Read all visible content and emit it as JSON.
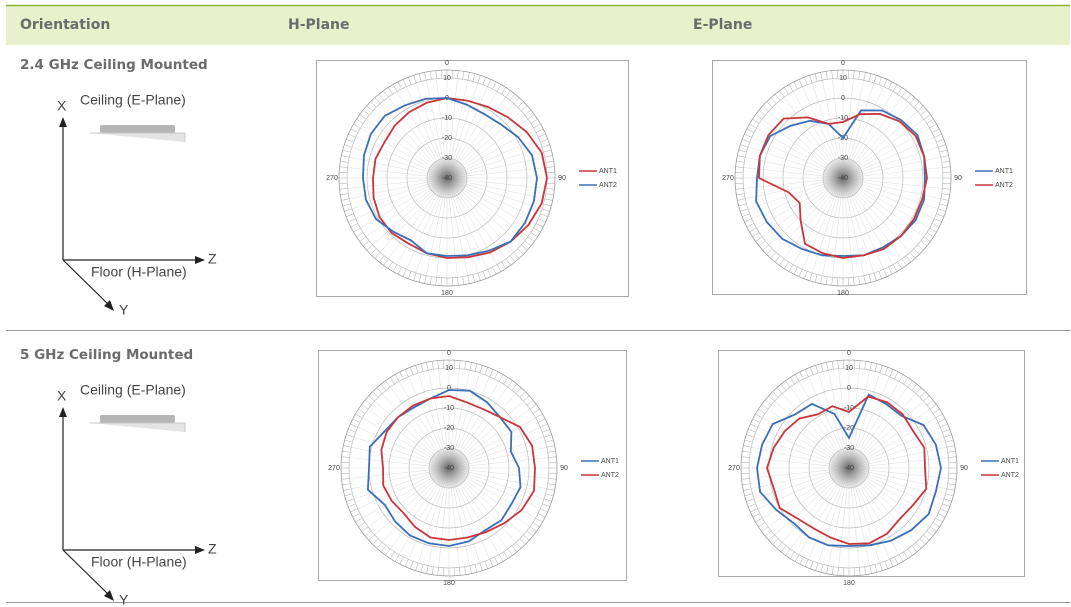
{
  "header": {
    "columns": [
      "Orientation",
      "H-Plane",
      "E-Plane"
    ]
  },
  "rows": [
    {
      "title": "2.4 GHz Ceiling Mounted",
      "diagram": {
        "x": "X",
        "ceiling": "Ceiling  (E-Plane)",
        "floor": "Floor  (H-Plane)",
        "z": "Z",
        "y": "Y"
      },
      "h_plane": {
        "type": "polar",
        "theta": [
          0,
          15,
          30,
          45,
          60,
          75,
          90,
          105,
          120,
          135,
          150,
          165,
          180,
          195,
          210,
          225,
          240,
          255,
          270,
          285,
          300,
          315,
          330,
          345
        ],
        "rlim": [
          -40,
          10
        ],
        "rticks": [
          10,
          0,
          -10,
          -20,
          -30,
          -40
        ],
        "angle_ticks": [
          0,
          90,
          180,
          270
        ],
        "series": [
          {
            "name": "ANT1",
            "color": "#c8363b",
            "values": [
              0,
              0,
              1,
              3,
              6,
              9,
              10,
              9,
              7,
              5,
              3,
              1,
              0,
              -1,
              -2,
              -1,
              -1,
              -2,
              -3,
              -3,
              -4,
              -3,
              -2,
              -1
            ]
          },
          {
            "name": "ANT2",
            "color": "#3a6fb8",
            "values": [
              0,
              -2,
              -3,
              -2,
              1,
              4,
              5,
              5,
              5,
              5,
              2,
              0,
              -1,
              -1,
              -4,
              -2,
              1,
              2,
              2,
              3,
              4,
              4,
              2,
              1
            ]
          }
        ]
      },
      "e_plane": {
        "type": "polar",
        "theta": [
          0,
          15,
          30,
          45,
          60,
          75,
          90,
          105,
          120,
          135,
          150,
          165,
          180,
          195,
          210,
          225,
          240,
          255,
          270,
          285,
          300,
          315,
          330,
          345
        ],
        "rlim": [
          -40,
          10
        ],
        "rticks": [
          10,
          0,
          -10,
          -20,
          -30,
          -40
        ],
        "angle_ticks": [
          0,
          90,
          180,
          270
        ],
        "series": [
          {
            "name": "ANT1",
            "color": "#3a6fb8",
            "values": [
              -20,
              -5,
              -1,
              1,
              3,
              2,
              1,
              2,
              2,
              1,
              0,
              0,
              -1,
              0,
              1,
              3,
              4,
              5,
              3,
              3,
              2,
              -3,
              -7,
              -12
            ]
          },
          {
            "name": "ANT2",
            "color": "#c8363b",
            "values": [
              -12,
              -7,
              -3,
              0,
              2,
              2,
              2,
              1,
              1,
              1,
              1,
              0,
              0,
              -1,
              -2,
              -10,
              -15,
              -12,
              2,
              3,
              3,
              2,
              -5,
              -12
            ]
          }
        ]
      }
    },
    {
      "title": "5 GHz Ceiling Mounted",
      "diagram": {
        "x": "X",
        "ceiling": "Ceiling  (E-Plane)",
        "floor": "Floor  (H-Plane)",
        "z": "Z",
        "y": "Y"
      },
      "h_plane": {
        "type": "polar",
        "theta": [
          0,
          15,
          30,
          45,
          60,
          75,
          90,
          105,
          120,
          135,
          150,
          165,
          180,
          195,
          210,
          225,
          240,
          255,
          270,
          285,
          300,
          315,
          330,
          345
        ],
        "rlim": [
          -40,
          10
        ],
        "rticks": [
          10,
          0,
          -10,
          -20,
          -30,
          -40
        ],
        "angle_ticks": [
          0,
          90,
          180,
          270
        ],
        "series": [
          {
            "name": "ANT1",
            "color": "#3a6fb8",
            "values": [
              -1,
              0,
              -2,
              -4,
              -4,
              -8,
              -5,
              -3,
              -4,
              -3,
              -4,
              -2,
              -1,
              -1,
              -1,
              -2,
              -3,
              2,
              0,
              1,
              -3,
              -4,
              -5,
              -4
            ]
          },
          {
            "name": "ANT2",
            "color": "#c8363b",
            "values": [
              -4,
              -6,
              -6,
              -4,
              1,
              3,
              3,
              4,
              2,
              -1,
              -3,
              -4,
              -4,
              -4,
              -6,
              -8,
              -7,
              -6,
              -7,
              -5,
              -4,
              -4,
              -4,
              -4
            ]
          }
        ]
      },
      "e_plane": {
        "type": "polar",
        "theta": [
          0,
          15,
          30,
          45,
          60,
          75,
          90,
          105,
          120,
          135,
          150,
          165,
          180,
          195,
          210,
          225,
          240,
          255,
          270,
          285,
          300,
          315,
          330,
          345
        ],
        "rlim": [
          -40,
          10
        ],
        "rticks": [
          10,
          0,
          -10,
          -20,
          -30,
          -40
        ],
        "angle_ticks": [
          0,
          90,
          180,
          270
        ],
        "series": [
          {
            "name": "ANT1",
            "color": "#3a6fb8",
            "values": [
              -25,
              -2,
              -3,
              -3,
              3,
              5,
              6,
              5,
              6,
              4,
              2,
              0,
              -1,
              0,
              0,
              -1,
              2,
              6,
              6,
              5,
              4,
              -2,
              -3,
              -12
            ]
          },
          {
            "name": "ANT2",
            "color": "#c8363b",
            "values": [
              -12,
              -3,
              -2,
              -2,
              -3,
              -1,
              -2,
              0,
              -3,
              -4,
              -2,
              -1,
              -2,
              -4,
              -5,
              -4,
              0,
              -1,
              1,
              -1,
              -3,
              -5,
              -9,
              -8
            ]
          }
        ]
      }
    }
  ]
}
